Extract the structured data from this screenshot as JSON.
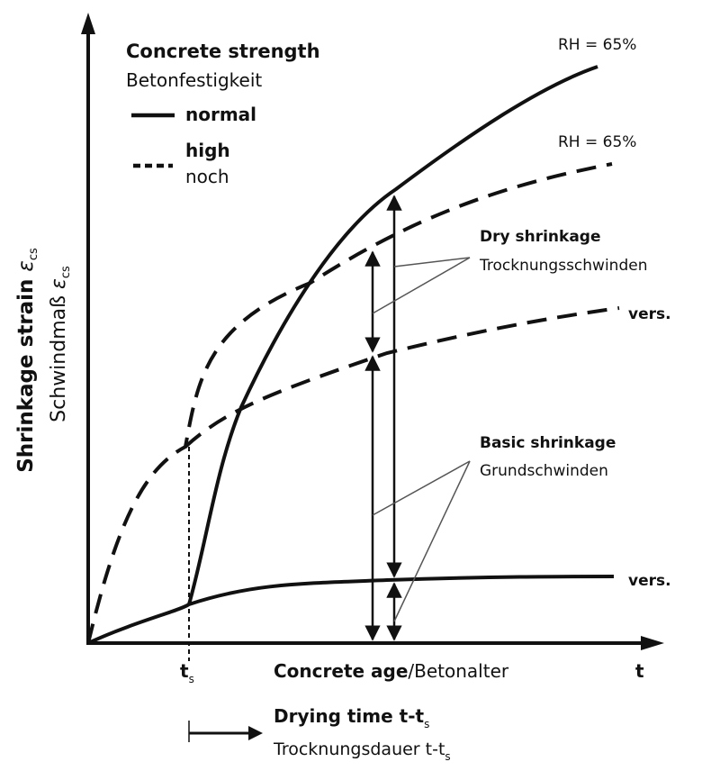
{
  "legend": {
    "title": "Concrete strength",
    "title_de": "Betonfestigkeit",
    "normal": "normal",
    "high": "high",
    "high_de": "noch"
  },
  "y_axis": {
    "label_en": "Shrinkage strain",
    "label_de": "Schwindmaß",
    "symbol": "ε",
    "subscript": "cs"
  },
  "x_axis": {
    "ts": "t",
    "ts_sub": "s",
    "label_bold": "Concrete age",
    "label_rest": "/Betonalter",
    "t": "t"
  },
  "drying": {
    "title": "Drying time t-t",
    "title_sub": "s",
    "title_de": "Trocknungsdauer t-t",
    "title_de_sub": "s"
  },
  "curve_labels": {
    "rh_normal": "RH = 65%",
    "rh_high": "RH = 65%",
    "vers_high": "vers.",
    "vers_normal": "vers."
  },
  "annotations": {
    "dry_en": "Dry shrinkage",
    "dry_de": "Trocknungsschwinden",
    "basic_en": "Basic shrinkage",
    "basic_de": "Grundschwinden"
  }
}
